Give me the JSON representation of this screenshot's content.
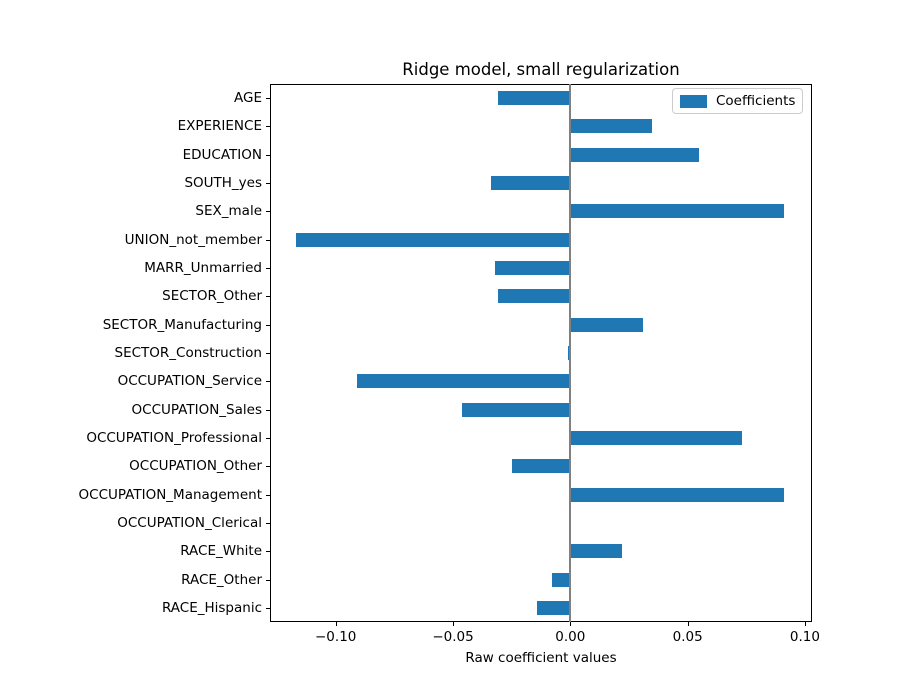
{
  "chart_data": {
    "type": "bar",
    "orientation": "horizontal",
    "title": "Ridge model, small regularization",
    "xlabel": "Raw coefficient values",
    "ylabel": "",
    "legend": {
      "label": "Coefficients",
      "position": "upper right"
    },
    "grid": false,
    "bar_color": "#1f77b4",
    "zero_line_color": "#808080",
    "categories": [
      "AGE",
      "EXPERIENCE",
      "EDUCATION",
      "SOUTH_yes",
      "SEX_male",
      "UNION_not_member",
      "MARR_Unmarried",
      "SECTOR_Other",
      "SECTOR_Manufacturing",
      "SECTOR_Construction",
      "OCCUPATION_Service",
      "OCCUPATION_Sales",
      "OCCUPATION_Professional",
      "OCCUPATION_Other",
      "OCCUPATION_Management",
      "OCCUPATION_Clerical",
      "RACE_White",
      "RACE_Other",
      "RACE_Hispanic"
    ],
    "values": [
      -0.031,
      0.035,
      0.055,
      -0.034,
      0.091,
      -0.117,
      -0.032,
      -0.031,
      0.031,
      -0.001,
      -0.091,
      -0.046,
      0.073,
      -0.025,
      0.091,
      0.0,
      0.022,
      -0.008,
      -0.014
    ],
    "xlim": [
      -0.128,
      0.103
    ],
    "xticks": {
      "values": [
        -0.1,
        -0.05,
        0.0,
        0.05,
        0.1
      ],
      "labels": [
        "−0.10",
        "−0.05",
        "0.00",
        "0.05",
        "0.10"
      ]
    }
  }
}
